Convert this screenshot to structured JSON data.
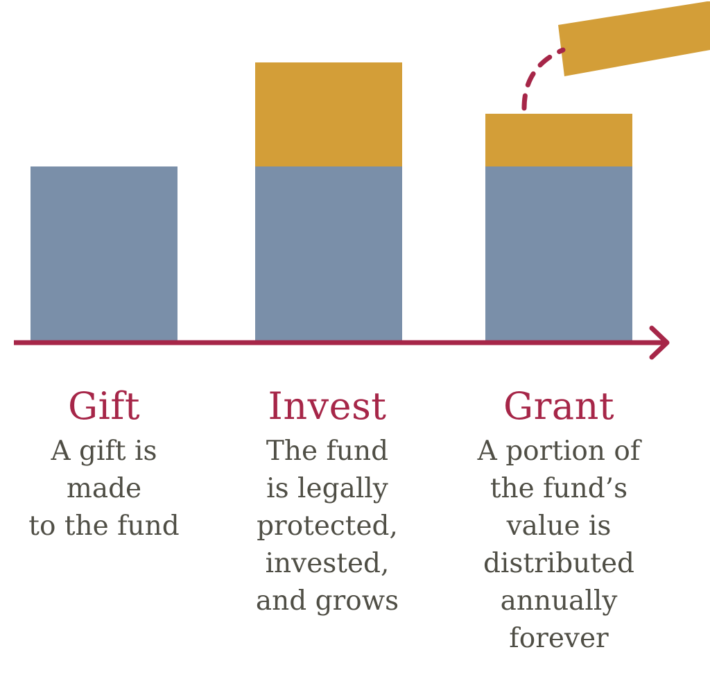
{
  "colors": {
    "principal": "#7a8fa9",
    "growth": "#d39e38",
    "accent": "#a62648",
    "text": "#4f4e45"
  },
  "steps": [
    {
      "title": "Gift",
      "lines": [
        "A gift is",
        "made",
        "to the fund"
      ]
    },
    {
      "title": "Invest",
      "lines": [
        "The fund",
        "is legally",
        "protected,",
        "invested,",
        "and grows"
      ]
    },
    {
      "title": "Grant",
      "lines": [
        "A portion of",
        "the fund’s",
        "value is",
        "distributed",
        "annually",
        "forever"
      ]
    }
  ]
}
